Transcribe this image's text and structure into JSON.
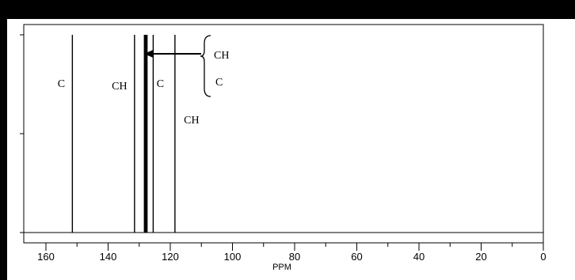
{
  "chart_data": {
    "type": "line",
    "subtype": "nmr-stick-spectrum",
    "xlabel": "PPM",
    "xlim": [
      165,
      0
    ],
    "x_reversed": true,
    "x_ticks": [
      160,
      140,
      120,
      100,
      80,
      60,
      40,
      20,
      0
    ],
    "x_minor_step": 10,
    "ylim": [
      0,
      1
    ],
    "y_ticks": [
      0,
      0.5,
      1
    ],
    "grid": false,
    "peaks": [
      {
        "ppm": 151.5,
        "height": 1,
        "label": "C"
      },
      {
        "ppm": 131.5,
        "height": 1,
        "label": "CH"
      },
      {
        "ppm": 128.2,
        "height": 1,
        "label": ""
      },
      {
        "ppm": 127.6,
        "height": 1,
        "label": ""
      },
      {
        "ppm": 125.5,
        "height": 1,
        "label": "C"
      },
      {
        "ppm": 118.5,
        "height": 1,
        "label": "CH"
      }
    ],
    "annotation": {
      "labels": [
        "CH",
        "C"
      ],
      "arrow_to_ppm": 128
    }
  },
  "colors": {
    "frame": "#000000",
    "peaks": "#000000",
    "background": "#ffffff"
  }
}
